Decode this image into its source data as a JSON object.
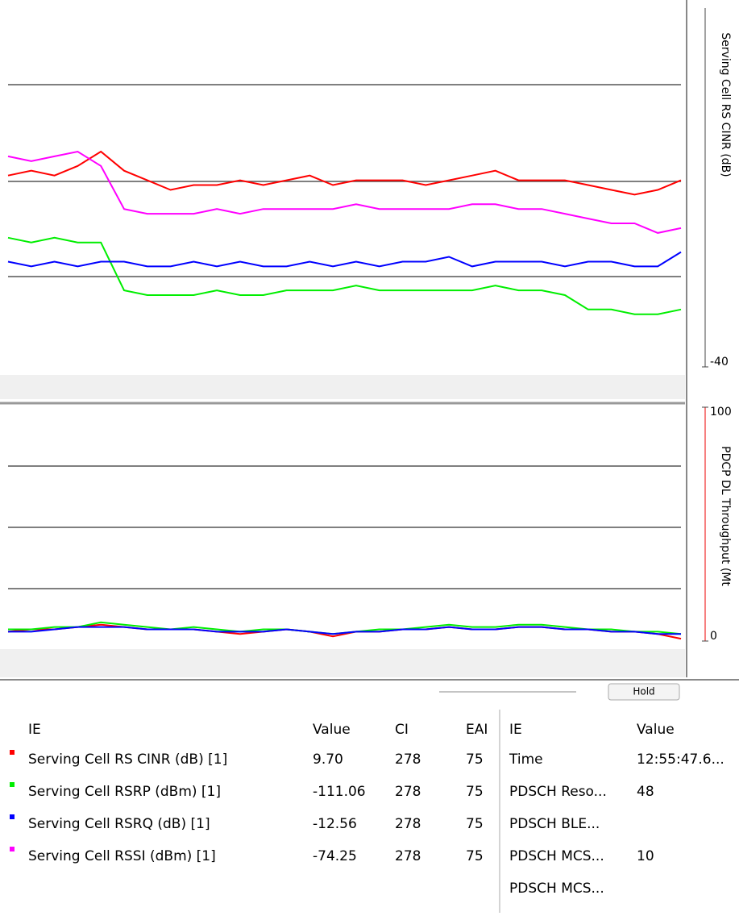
{
  "chart_data": [
    {
      "type": "line",
      "ylabel": "Serving Cell RS CINR (dB)",
      "ylim": [
        -40,
        35
      ],
      "yticks": [
        -40
      ],
      "series": [
        {
          "color": "#ff0000",
          "values": [
            0,
            1,
            0,
            2,
            5,
            1,
            -1,
            -3,
            -2,
            -2,
            -1,
            -2,
            -1,
            0,
            -2,
            -1,
            -1,
            -1,
            -2,
            -1,
            0,
            1,
            -1,
            -1,
            -1,
            -2,
            -3,
            -4,
            -3,
            -1
          ]
        },
        {
          "color": "#00ee00",
          "values": [
            -13,
            -14,
            -13,
            -14,
            -14,
            -24,
            -25,
            -25,
            -25,
            -24,
            -25,
            -25,
            -24,
            -24,
            -24,
            -23,
            -24,
            -24,
            -24,
            -24,
            -24,
            -23,
            -24,
            -24,
            -25,
            -28,
            -28,
            -29,
            -29,
            -28
          ]
        },
        {
          "color": "#0000ff",
          "values": [
            -18,
            -19,
            -18,
            -19,
            -18,
            -18,
            -19,
            -19,
            -18,
            -19,
            -18,
            -19,
            -19,
            -18,
            -19,
            -18,
            -19,
            -18,
            -18,
            -17,
            -19,
            -18,
            -18,
            -18,
            -19,
            -18,
            -18,
            -19,
            -19,
            -16
          ]
        },
        {
          "color": "#ff00ff",
          "values": [
            4,
            3,
            4,
            5,
            2,
            -7,
            -8,
            -8,
            -8,
            -7,
            -8,
            -7,
            -7,
            -7,
            -7,
            -6,
            -7,
            -7,
            -7,
            -7,
            -6,
            -6,
            -7,
            -7,
            -8,
            -9,
            -10,
            -10,
            -12,
            -11
          ]
        }
      ]
    },
    {
      "type": "line",
      "ylabel": "PDCP DL Throughput (Mt",
      "ylim": [
        0,
        100
      ],
      "yticks": [
        0,
        100
      ],
      "series": [
        {
          "color": "#ff0000",
          "values": [
            4,
            5,
            5,
            6,
            7,
            6,
            5,
            5,
            5,
            4,
            3,
            4,
            5,
            4,
            2,
            4,
            4,
            5,
            5,
            6,
            5,
            5,
            6,
            6,
            5,
            5,
            4,
            4,
            3,
            1
          ]
        },
        {
          "color": "#00ee00",
          "values": [
            5,
            5,
            6,
            6,
            8,
            7,
            6,
            5,
            6,
            5,
            4,
            5,
            5,
            4,
            3,
            4,
            5,
            5,
            6,
            7,
            6,
            6,
            7,
            7,
            6,
            5,
            5,
            4,
            4,
            3
          ]
        },
        {
          "color": "#0000ff",
          "values": [
            4,
            4,
            5,
            6,
            6,
            6,
            5,
            5,
            5,
            4,
            4,
            4,
            5,
            4,
            3,
            4,
            4,
            5,
            5,
            6,
            5,
            5,
            6,
            6,
            5,
            5,
            4,
            4,
            3,
            3
          ]
        }
      ]
    }
  ],
  "toolbar": {
    "button": "Hold"
  },
  "left_table": {
    "headers": [
      "IE",
      "Value",
      "CI",
      "EAI"
    ],
    "rows": [
      [
        "Serving Cell RS CINR (dB) [1]",
        "9.70",
        "278",
        "75"
      ],
      [
        "Serving Cell RSRP (dBm) [1]",
        "-111.06",
        "278",
        "75"
      ],
      [
        "Serving Cell RSRQ (dB) [1]",
        "-12.56",
        "278",
        "75"
      ],
      [
        "Serving Cell RSSI (dBm) [1]",
        "-74.25",
        "278",
        "75"
      ]
    ]
  },
  "right_table": {
    "headers": [
      "IE",
      "Value"
    ],
    "rows": [
      [
        "Time",
        "12:55:47.6..."
      ],
      [
        "PDSCH Reso...",
        "48"
      ],
      [
        "PDSCH BLE...",
        ""
      ],
      [
        "PDSCH MCS...",
        "10"
      ],
      [
        "PDSCH MCS...",
        ""
      ]
    ]
  }
}
